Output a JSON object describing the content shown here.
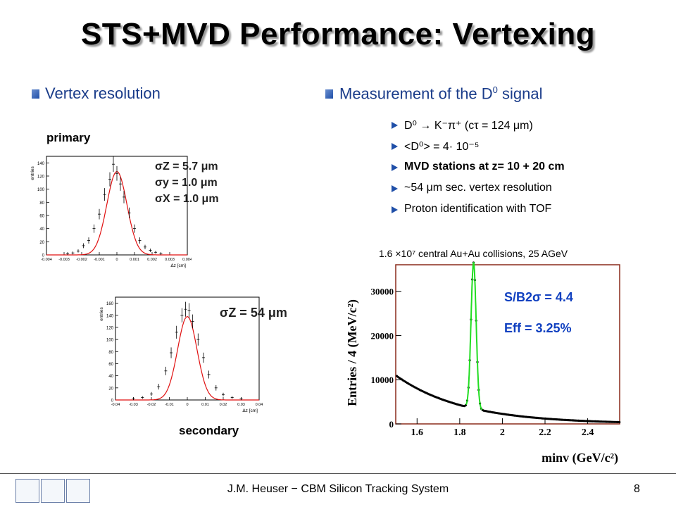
{
  "title": "STS+MVD Performance: Vertexing",
  "left": {
    "heading": "Vertex resolution",
    "primary_label": "primary",
    "secondary_label": "secondary",
    "primary_plot": {
      "ylabel": "entries",
      "xlabel": "Δz [cm]",
      "yticks": [
        "0",
        "20",
        "40",
        "60",
        "80",
        "100",
        "120",
        "140"
      ],
      "xticks": [
        "-0.004",
        "-0.003",
        "-0.002",
        "-0.001",
        "0",
        "0.001",
        "0.002",
        "0.003",
        "0.004"
      ],
      "sigma_z": "σZ = 5.7 μm",
      "sigma_y": "σy = 1.0 μm",
      "sigma_x": "σX = 1.0 μm"
    },
    "secondary_plot": {
      "ylabel": "entries",
      "xlabel": "Δz [cm]",
      "yticks": [
        "0",
        "20",
        "40",
        "60",
        "80",
        "100",
        "120",
        "140",
        "160"
      ],
      "xticks": [
        "-0.04",
        "-0.03",
        "-0.02",
        "-0.01",
        "0",
        "0.01",
        "0.02",
        "0.03",
        "0.04"
      ],
      "sigma_z": "σZ = 54 μm"
    }
  },
  "right": {
    "heading_prefix": "Measurement of the D",
    "heading_sup": "0",
    "heading_suffix": " signal",
    "bullets": [
      {
        "html_text": "D⁰ → K⁻π⁺  (cτ = 124 μm)",
        "bold": false
      },
      {
        "html_text": "<D⁰> = 4· 10⁻⁵",
        "bold": false
      },
      {
        "html_text": "MVD stations at z= 10 + 20 cm",
        "bold": true
      },
      {
        "html_text": "~54 μm sec. vertex resolution",
        "bold": false
      },
      {
        "html_text": "Proton identification with TOF",
        "bold": false
      }
    ],
    "chart_caption": "1.6 ×10⁷ central Au+Au collisions, 25 AGeV",
    "sb_label": "S/B2σ = 4.4",
    "eff_label": "Eff = 3.25%",
    "ylabel": "Entries / 4 (MeV/c²)",
    "xlabel": "minv  (GeV/c²)"
  },
  "chart_data": [
    {
      "type": "scatter",
      "title": "",
      "xlabel": "Δz [cm]",
      "ylabel": "entries",
      "xlim": [
        -0.004,
        0.004
      ],
      "ylim": [
        0,
        150
      ],
      "points": [
        [
          -0.0028,
          2
        ],
        [
          -0.0025,
          3
        ],
        [
          -0.0022,
          6
        ],
        [
          -0.0019,
          14
        ],
        [
          -0.0016,
          22
        ],
        [
          -0.0013,
          40
        ],
        [
          -0.001,
          62
        ],
        [
          -0.0007,
          92
        ],
        [
          -0.0004,
          115
        ],
        [
          -0.0002,
          138
        ],
        [
          0,
          124
        ],
        [
          0.0002,
          108
        ],
        [
          0.0004,
          88
        ],
        [
          0.0007,
          64
        ],
        [
          0.001,
          40
        ],
        [
          0.0013,
          22
        ],
        [
          0.0016,
          12
        ],
        [
          0.0019,
          7
        ],
        [
          0.0022,
          4
        ],
        [
          0.0025,
          2
        ]
      ],
      "fit_sigma": 0.00057
    },
    {
      "type": "scatter",
      "title": "",
      "xlabel": "Δz [cm]",
      "ylabel": "entries",
      "xlim": [
        -0.04,
        0.04
      ],
      "ylim": [
        0,
        170
      ],
      "points": [
        [
          -0.03,
          2
        ],
        [
          -0.025,
          4
        ],
        [
          -0.02,
          10
        ],
        [
          -0.016,
          22
        ],
        [
          -0.012,
          48
        ],
        [
          -0.009,
          78
        ],
        [
          -0.006,
          112
        ],
        [
          -0.003,
          140
        ],
        [
          -0.001,
          150
        ],
        [
          0.001,
          148
        ],
        [
          0.003,
          130
        ],
        [
          0.006,
          100
        ],
        [
          0.009,
          70
        ],
        [
          0.012,
          42
        ],
        [
          0.016,
          20
        ],
        [
          0.02,
          9
        ],
        [
          0.025,
          4
        ],
        [
          0.03,
          2
        ]
      ],
      "fit_sigma": 0.0054
    },
    {
      "type": "scatter",
      "title": "1.6 ×10⁷ central Au+Au collisions, 25 AGeV",
      "xlabel": "minv  (GeV/c²)",
      "ylabel": "Entries / 4 (MeV/c²)",
      "xlim": [
        1.5,
        2.55
      ],
      "ylim": [
        0,
        36000
      ],
      "xticks": [
        1.6,
        1.8,
        2.0,
        2.2,
        2.4
      ],
      "yticks": [
        0,
        10000,
        20000,
        30000
      ],
      "background_start": [
        1.5,
        11000
      ],
      "background_end": [
        2.55,
        400
      ],
      "peak": {
        "x": 1.865,
        "height": 33000,
        "sigma": 0.012
      },
      "annotations": [
        "S/B2σ = 4.4",
        "Eff = 3.25%"
      ]
    }
  ],
  "footer": {
    "text": "J.M. Heuser  −  CBM Silicon Tracking System",
    "page": "8"
  },
  "colors": {
    "accent": "#1f4fa8",
    "heading": "#1a3c8a",
    "fit_red": "#e01010",
    "fit_green": "#22dd22",
    "annotation_blue": "#1040c0"
  }
}
